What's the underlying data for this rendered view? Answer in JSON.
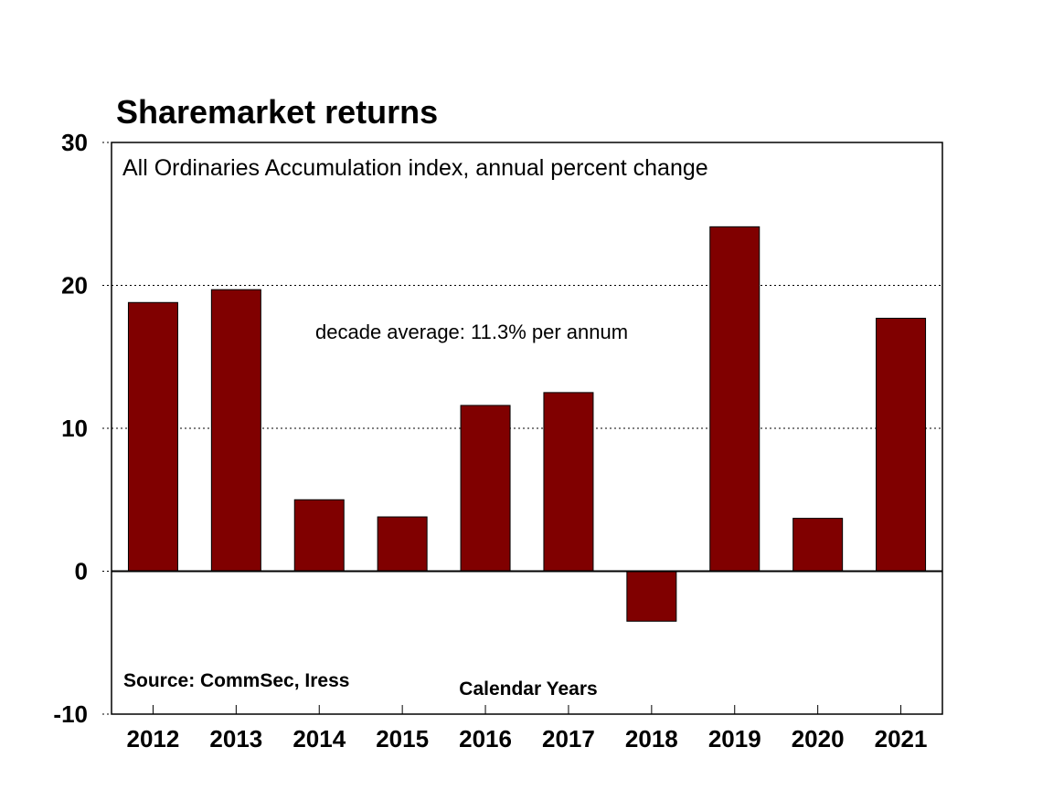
{
  "chart_data": {
    "type": "bar",
    "title": "Sharemarket returns",
    "subtitle": "All Ordinaries Accumulation index, annual percent change",
    "annotation": "decade average: 11.3% per annum",
    "source": "Source: CommSec, Iress",
    "xlabel": "Calendar Years",
    "ylabel": "",
    "categories": [
      "2012",
      "2013",
      "2014",
      "2015",
      "2016",
      "2017",
      "2018",
      "2019",
      "2020",
      "2021"
    ],
    "values": [
      18.8,
      19.7,
      5.0,
      3.8,
      11.6,
      12.5,
      -3.5,
      24.1,
      3.7,
      17.7
    ],
    "ylim": [
      -10,
      30
    ],
    "yticks": [
      -10,
      0,
      10,
      20,
      30
    ],
    "ytick_labels": [
      "-10",
      "0",
      "10",
      "20",
      "30"
    ],
    "grid": true,
    "colors": {
      "bar": "#800000",
      "bar_outline": "#000000",
      "grid": "#000000"
    }
  }
}
